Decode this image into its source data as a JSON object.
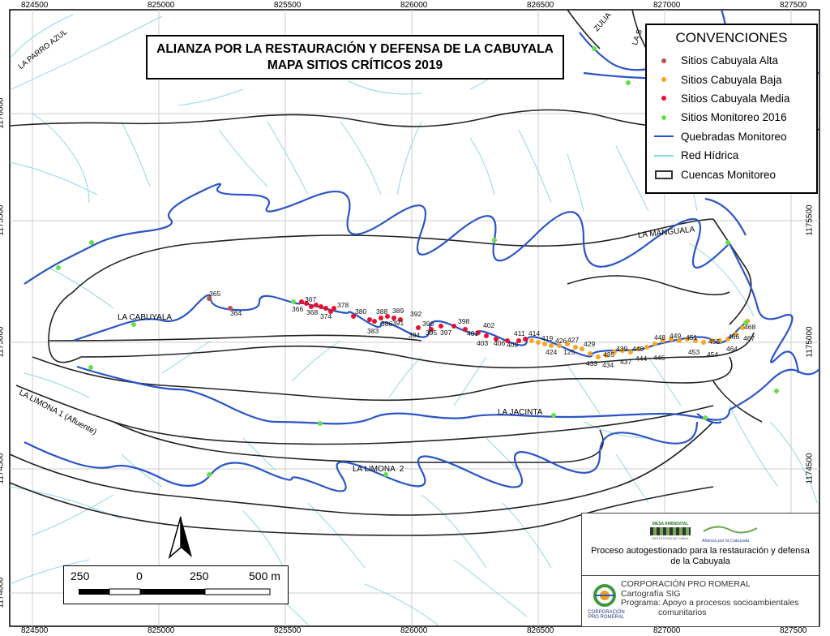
{
  "title": {
    "line1": "ALIANZA POR LA RESTAURACIÓN Y DEFENSA DE LA CABUYALA",
    "line2": "MAPA SITIOS CRÍTICOS 2019"
  },
  "legend": {
    "title": "CONVENCIONES",
    "items": [
      {
        "label": "Sitios Cabuyala Alta",
        "symbol": "dot",
        "color": "#c0504d"
      },
      {
        "label": "Sitios Cabuyala Baja",
        "symbol": "dot",
        "color": "#f5a623"
      },
      {
        "label": "Sitios Cabuyala Media",
        "symbol": "dot",
        "color": "#e8102c"
      },
      {
        "label": "Sitios Monitoreo 2016",
        "symbol": "dot",
        "color": "#66e04a"
      },
      {
        "label": "Quebradas Monitoreo",
        "symbol": "line",
        "color": "#2255cc"
      },
      {
        "label": "Red Hídrica",
        "symbol": "line",
        "color": "#7fd6e6"
      },
      {
        "label": "Cuencas Monitoreo",
        "symbol": "rect",
        "color": "#333333"
      }
    ]
  },
  "grid": {
    "x_labels": [
      "824500",
      "825000",
      "825500",
      "826000",
      "826500",
      "827000",
      "827500"
    ],
    "y_labels": [
      "1176000",
      "1175500",
      "1175000",
      "1174500",
      "1174000"
    ]
  },
  "streams": [
    "LA CABUYALA",
    "LA MANGUALA",
    "LA JACINTA",
    "LA LIMONA  2",
    "LA LIMONA 1 (Afluente)",
    "LA PARRO AZUL",
    "ZULIA",
    "LA S"
  ],
  "site_labels": {
    "alta": [
      "365",
      "364"
    ],
    "media": [
      "367",
      "366",
      "368",
      "374",
      "378",
      "380",
      "383",
      "386",
      "388",
      "391",
      "389",
      "392",
      "394",
      "395",
      "396",
      "397",
      "398",
      "401",
      "402",
      "403",
      "406",
      "409",
      "411"
    ],
    "baja": [
      "414",
      "419",
      "424",
      "426",
      "125",
      "427",
      "429",
      "433",
      "434",
      "435",
      "437",
      "439",
      "440",
      "444",
      "446",
      "448",
      "449",
      "451",
      "453",
      "454",
      "455",
      "464",
      "466",
      "467",
      "468"
    ]
  },
  "scale_bar": {
    "labels": [
      "250",
      "0",
      "250",
      "500 m"
    ]
  },
  "credits": {
    "logo1_text": "MESA AMBIENTAL",
    "logo1_sub": "SANTA ROSA DE CABAL",
    "logo2_text": "Alianza por la Cabuyala",
    "process_line1": "Proceso autogestionado para la restauración y defensa",
    "process_line2": "de la Cabuyala",
    "corp_name": "CORPORACIÓN PRO ROMERAL",
    "corp_logo_label": "CORPORACIÓN PRO ROMERAL",
    "line_cartografia": "Cartografía SIG",
    "line_programa1": "Programa: Apoyo a procesos socioambientales",
    "line_programa2": "comunitarios"
  }
}
